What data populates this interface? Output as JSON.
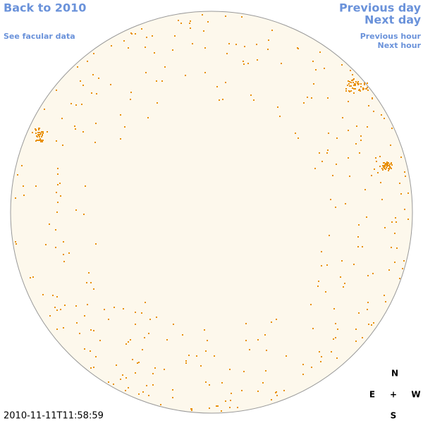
{
  "nav": {
    "back": "Back to 2010",
    "facular": "See facular data",
    "previous_day": "Previous day",
    "next_day": "Next day",
    "previous_hour": "Previous hour",
    "next_hour": "Next hour"
  },
  "timestamp": "2010-11-11T11:58:59",
  "compass": {
    "north": "N",
    "east": "E",
    "center": "+",
    "west": "W",
    "south": "S"
  }
}
